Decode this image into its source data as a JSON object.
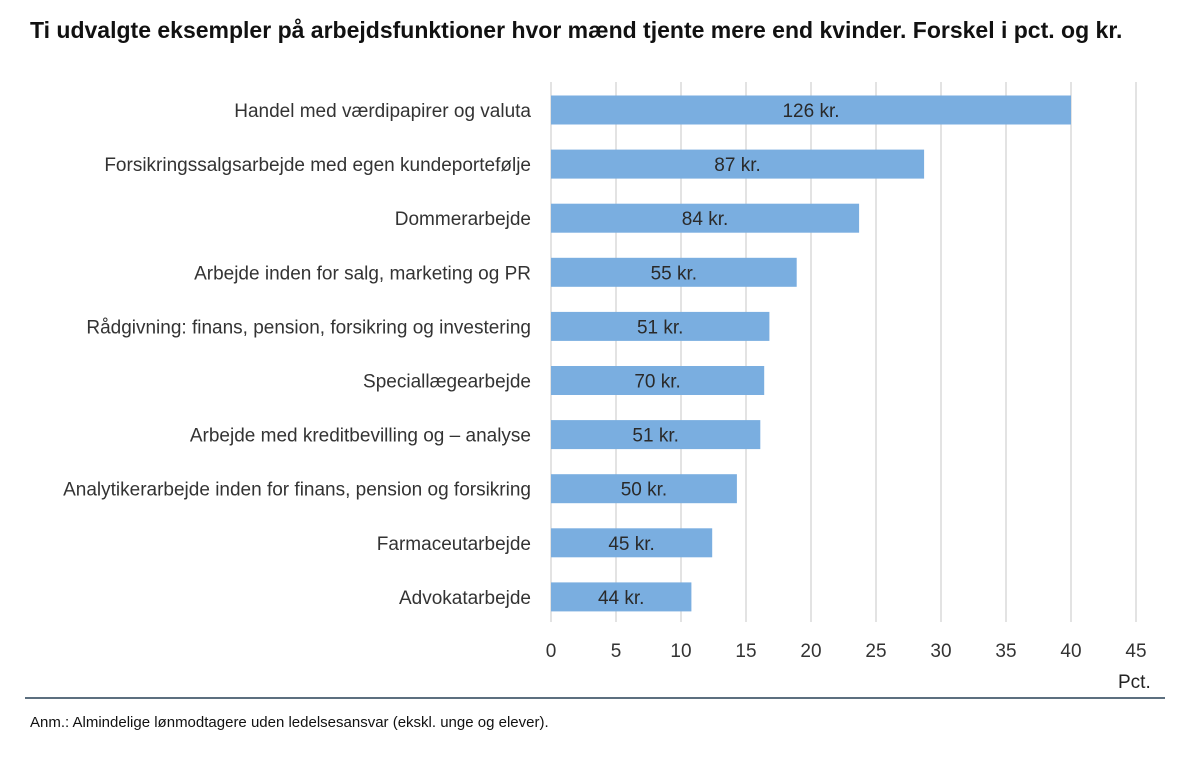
{
  "title": "Ti udvalgte eksempler på arbejdsfunktioner hvor mænd tjente mere end kvinder. Forskel i pct. og kr.",
  "note": "Anm.: Almindelige lønmodtagere uden ledelsesansvar (ekskl. unge og elever).",
  "colors": {
    "bar": "#7aaee0",
    "grid": "#d0d0d0",
    "axis": "#5c6f7f"
  },
  "chart_data": {
    "type": "bar",
    "orientation": "horizontal",
    "title": "Ti udvalgte eksempler på arbejdsfunktioner hvor mænd tjente mere end kvinder. Forskel i pct. og kr.",
    "xlabel": "Pct.",
    "xlim": [
      0,
      45
    ],
    "xticks": [
      "0",
      "5",
      "10",
      "15",
      "20",
      "25",
      "30",
      "35",
      "40",
      "45"
    ],
    "grid": true,
    "categories": [
      "Handel med værdipapirer og valuta",
      "Forsikringssalgsarbejde med egen kundeportefølje",
      "Dommerarbejde",
      "Arbejde inden for salg, marketing og PR",
      "Rådgivning: finans, pension, forsikring og investering",
      "Speciallægearbejde",
      "Arbejde med kreditbevilling og – analyse",
      "Analytikerarbejde inden for finans, pension og forsikring",
      "Farmaceutarbejde",
      "Advokatarbejde"
    ],
    "values": [
      40.0,
      28.7,
      23.7,
      18.9,
      16.8,
      16.4,
      16.1,
      14.3,
      12.4,
      10.8
    ],
    "bar_labels": [
      "126 kr.",
      "87 kr.",
      "84 kr.",
      "55 kr.",
      "51 kr.",
      "70 kr.",
      "51 kr.",
      "50 kr.",
      "45 kr.",
      "44 kr."
    ]
  }
}
